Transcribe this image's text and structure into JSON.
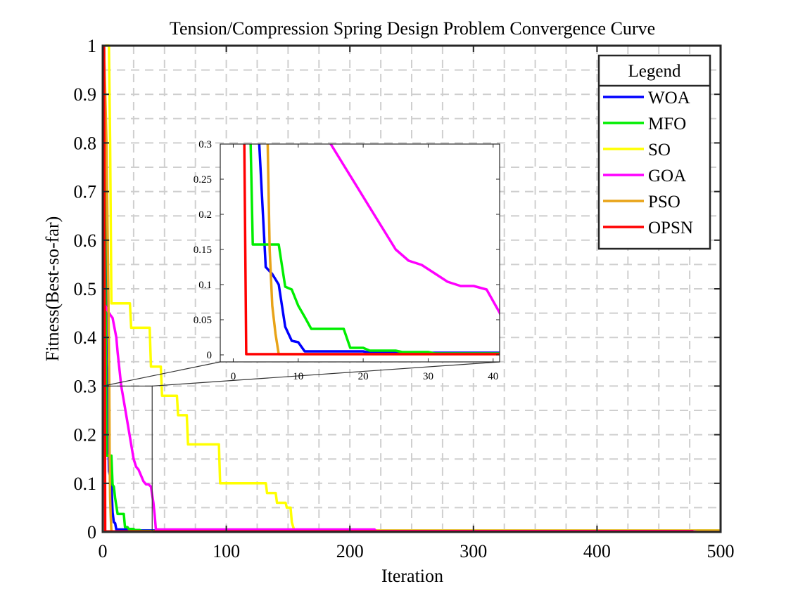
{
  "chart_data": {
    "type": "line",
    "title": "Tension/Compression Spring Design Problem Convergence Curve",
    "xlabel": "Iteration",
    "ylabel": "Fitness(Best-so-far)",
    "xlim": [
      0,
      500
    ],
    "ylim": [
      0,
      1
    ],
    "xticks": [
      "0",
      "100",
      "200",
      "300",
      "400",
      "500"
    ],
    "yticks": [
      "0",
      "0.1",
      "0.2",
      "0.3",
      "0.4",
      "0.5",
      "0.6",
      "0.7",
      "0.8",
      "0.9",
      "1"
    ],
    "grid": true,
    "legend": {
      "title": "Legend",
      "position": "top-right"
    },
    "series": [
      {
        "name": "WOA",
        "color": "#0000ff",
        "points": [
          [
            1,
            1
          ],
          [
            2,
            0.85
          ],
          [
            3,
            0.35
          ],
          [
            4,
            0.3
          ],
          [
            5,
            0.125
          ],
          [
            6,
            0.115
          ],
          [
            7,
            0.1
          ],
          [
            8,
            0.04
          ],
          [
            9,
            0.02
          ],
          [
            10,
            0.018
          ],
          [
            11,
            0.005
          ],
          [
            20,
            0.005
          ],
          [
            21,
            0.003
          ],
          [
            500,
            0.003
          ]
        ]
      },
      {
        "name": "MFO",
        "color": "#00ee00",
        "points": [
          [
            1,
            1
          ],
          [
            2,
            0.6
          ],
          [
            3,
            0.157
          ],
          [
            7,
            0.157
          ],
          [
            8,
            0.097
          ],
          [
            9,
            0.093
          ],
          [
            10,
            0.07
          ],
          [
            11,
            0.054
          ],
          [
            12,
            0.037
          ],
          [
            17,
            0.037
          ],
          [
            18,
            0.01
          ],
          [
            20,
            0.01
          ],
          [
            21,
            0.006
          ],
          [
            25,
            0.006
          ],
          [
            26,
            0.004
          ],
          [
            30,
            0.004
          ],
          [
            31,
            0.002
          ],
          [
            500,
            0.002
          ]
        ]
      },
      {
        "name": "SO",
        "color": "#ffff00",
        "points": [
          [
            2,
            1
          ],
          [
            5,
            1
          ],
          [
            6,
            0.8
          ],
          [
            7,
            0.47
          ],
          [
            22,
            0.47
          ],
          [
            23,
            0.42
          ],
          [
            38,
            0.42
          ],
          [
            39,
            0.34
          ],
          [
            47,
            0.34
          ],
          [
            48,
            0.28
          ],
          [
            60,
            0.28
          ],
          [
            61,
            0.24
          ],
          [
            68,
            0.24
          ],
          [
            69,
            0.18
          ],
          [
            94,
            0.18
          ],
          [
            95,
            0.1
          ],
          [
            132,
            0.1
          ],
          [
            133,
            0.08
          ],
          [
            140,
            0.08
          ],
          [
            141,
            0.06
          ],
          [
            148,
            0.06
          ],
          [
            149,
            0.05
          ],
          [
            152,
            0.05
          ],
          [
            153,
            0.02
          ],
          [
            155,
            0.003
          ],
          [
            500,
            0.003
          ]
        ]
      },
      {
        "name": "GOA",
        "color": "#ff00ff",
        "points": [
          [
            1,
            0.47
          ],
          [
            5,
            0.45
          ],
          [
            8,
            0.44
          ],
          [
            11,
            0.4
          ],
          [
            12,
            0.37
          ],
          [
            15,
            0.3
          ],
          [
            17,
            0.27
          ],
          [
            19,
            0.24
          ],
          [
            21,
            0.21
          ],
          [
            23,
            0.18
          ],
          [
            25,
            0.15
          ],
          [
            27,
            0.134
          ],
          [
            29,
            0.128
          ],
          [
            31,
            0.116
          ],
          [
            33,
            0.104
          ],
          [
            35,
            0.098
          ],
          [
            37,
            0.098
          ],
          [
            39,
            0.093
          ],
          [
            41,
            0.06
          ],
          [
            42,
            0.035
          ],
          [
            43,
            0.005
          ],
          [
            220,
            0.005
          ],
          [
            221,
            0.002
          ],
          [
            500,
            0.002
          ]
        ]
      },
      {
        "name": "PSO",
        "color": "#e8a317",
        "points": [
          [
            1,
            1
          ],
          [
            3,
            0.8
          ],
          [
            4.5,
            0.5
          ],
          [
            5.3,
            0.3
          ],
          [
            5.6,
            0.15
          ],
          [
            6,
            0.07
          ],
          [
            6.5,
            0.03
          ],
          [
            7,
            0.001
          ],
          [
            480,
            0.001
          ],
          [
            481,
            0.002
          ],
          [
            500,
            0.002
          ]
        ]
      },
      {
        "name": "OPSN",
        "color": "#ff0000",
        "points": [
          [
            1,
            1
          ],
          [
            1.7,
            0.3
          ],
          [
            2,
            0.001
          ],
          [
            478,
            0.001
          ]
        ]
      }
    ],
    "inset": {
      "xlim": [
        -2,
        41
      ],
      "ylim": [
        -0.01,
        0.3
      ],
      "xticks": [
        "0",
        "10",
        "20",
        "30",
        "40"
      ],
      "yticks": [
        "0",
        "0.05",
        "0.1",
        "0.15",
        "0.2",
        "0.25",
        "0.3"
      ],
      "zoom_region": {
        "x": [
          0,
          40
        ],
        "y": [
          0,
          0.3
        ]
      }
    }
  }
}
